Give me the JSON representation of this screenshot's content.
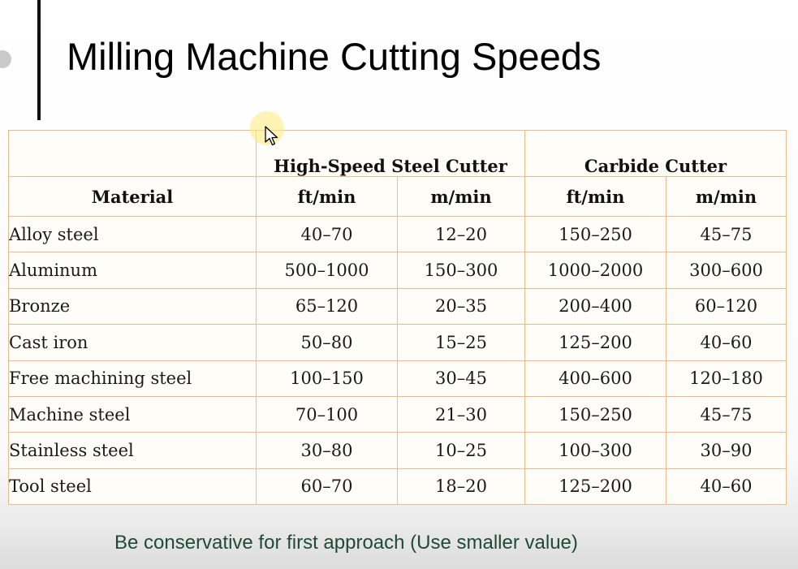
{
  "slide": {
    "title": "Milling Machine Cutting Speeds",
    "footer_note": "Be conservative for first approach (Use smaller value)"
  },
  "table": {
    "group_headers": [
      "High-Speed Steel Cutter",
      "Carbide Cutter"
    ],
    "material_header": "Material",
    "unit_headers": [
      "ft/min",
      "m/min",
      "ft/min",
      "m/min"
    ],
    "rows": [
      {
        "material": "Alloy steel",
        "values": [
          "40–70",
          "12–20",
          "150–250",
          "45–75"
        ]
      },
      {
        "material": "Aluminum",
        "values": [
          "500–1000",
          "150–300",
          "1000–2000",
          "300–600"
        ]
      },
      {
        "material": "Bronze",
        "values": [
          "65–120",
          "20–35",
          "200–400",
          "60–120"
        ]
      },
      {
        "material": "Cast iron",
        "values": [
          "50–80",
          "15–25",
          "125–200",
          "40–60"
        ]
      },
      {
        "material": "Free machining steel",
        "values": [
          "100–150",
          "30–45",
          "400–600",
          "120–180"
        ]
      },
      {
        "material": "Machine steel",
        "values": [
          "70–100",
          "21–30",
          "150–250",
          "45–75"
        ]
      },
      {
        "material": "Stainless steel",
        "values": [
          "30–80",
          "10–25",
          "100–300",
          "30–90"
        ]
      },
      {
        "material": "Tool steel",
        "values": [
          "60–70",
          "18–20",
          "125–200",
          "40–60"
        ]
      }
    ]
  },
  "colors": {
    "grid_line": "#f2b98e",
    "footer_text": "#1f4a3a",
    "accent_bar": "#111111"
  },
  "icons": {
    "cursor": "mouse-pointer-icon"
  }
}
